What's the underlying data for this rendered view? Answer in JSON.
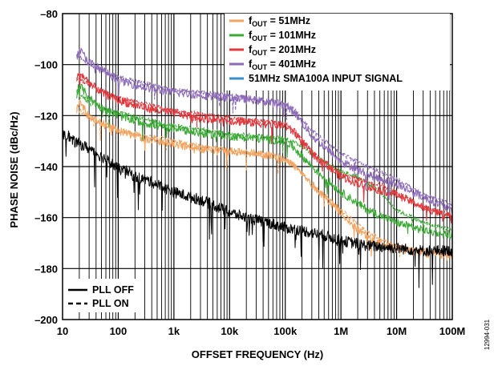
{
  "chart_data": {
    "type": "line",
    "xlabel": "OFFSET FREQUENCY (Hz)",
    "ylabel": "PHASE NOISE (dBc/Hz)",
    "x_scale": "log",
    "xlim": [
      10,
      100000000
    ],
    "ylim": [
      -200,
      -80
    ],
    "x_ticks": [
      {
        "value": 10,
        "label": "10"
      },
      {
        "value": 100,
        "label": "100"
      },
      {
        "value": 1000,
        "label": "1k"
      },
      {
        "value": 10000,
        "label": "10k"
      },
      {
        "value": 100000,
        "label": "100k"
      },
      {
        "value": 1000000,
        "label": "1M"
      },
      {
        "value": 10000000,
        "label": "10M"
      },
      {
        "value": 100000000,
        "label": "100M"
      }
    ],
    "y_ticks": [
      {
        "value": -80,
        "label": "–80"
      },
      {
        "value": -100,
        "label": "–100"
      },
      {
        "value": -120,
        "label": "–120"
      },
      {
        "value": -140,
        "label": "–140"
      },
      {
        "value": -160,
        "label": "–160"
      },
      {
        "value": -180,
        "label": "–180"
      },
      {
        "value": -200,
        "label": "–200"
      }
    ],
    "grid": "log-minor-vertical, major-horizontal",
    "figure_id": "12994-031",
    "legend_colors": {
      "position": "top-right",
      "entries": [
        {
          "prefix": "f",
          "sub": "OUT",
          "suffix": " = 51MHz",
          "color": "#F4A460"
        },
        {
          "prefix": "f",
          "sub": "OUT",
          "suffix": " = 101MHz",
          "color": "#3AAA35"
        },
        {
          "prefix": "f",
          "sub": "OUT",
          "suffix": " = 201MHz",
          "color": "#E0393E"
        },
        {
          "prefix": "f",
          "sub": "OUT",
          "suffix": " = 401MHz",
          "color": "#8E6BB8"
        },
        {
          "prefix": "",
          "sub": "",
          "suffix": "51MHz SMA100A INPUT SIGNAL",
          "color": "#3A8FC8"
        }
      ]
    },
    "legend_styles": {
      "position": "bottom-left",
      "entries": [
        {
          "label": "PLL OFF",
          "dash": "solid"
        },
        {
          "label": "PLL ON",
          "dash": "dashed"
        }
      ]
    },
    "series": [
      {
        "name": "fOUT = 51MHz, PLL OFF",
        "color": "#F4A460",
        "dash": "solid",
        "x": [
          18,
          20,
          30,
          50,
          100,
          200,
          500,
          1000,
          3000,
          10000,
          30000,
          60000,
          100000,
          150000,
          300000,
          1000000,
          2000000,
          5000000,
          10000000,
          30000000,
          100000000
        ],
        "y": [
          -118,
          -114,
          -120,
          -123,
          -126,
          -128,
          -130,
          -131,
          -133,
          -134,
          -135,
          -136,
          -137,
          -140,
          -147,
          -158,
          -165,
          -170,
          -172,
          -174,
          -175
        ]
      },
      {
        "name": "fOUT = 51MHz, PLL ON",
        "color": "#F4A460",
        "dash": "dashed",
        "x": [
          18,
          30,
          100,
          1000,
          10000,
          100000,
          150000,
          300000,
          1000000,
          3000000,
          10000000,
          30000000,
          100000000
        ],
        "y": [
          -117,
          -121,
          -126,
          -130,
          -134,
          -137,
          -140,
          -147,
          -157,
          -166,
          -171,
          -173,
          -174
        ]
      },
      {
        "name": "fOUT = 101MHz, PLL OFF",
        "color": "#3AAA35",
        "dash": "solid",
        "x": [
          18,
          20,
          30,
          50,
          100,
          200,
          500,
          1000,
          3000,
          10000,
          30000,
          100000,
          150000,
          300000,
          1000000,
          3000000,
          10000000,
          30000000,
          100000000
        ],
        "y": [
          -112,
          -108,
          -113,
          -117,
          -120,
          -122,
          -124,
          -125,
          -127,
          -128,
          -129,
          -130,
          -133,
          -140,
          -150,
          -157,
          -162,
          -165,
          -167
        ]
      },
      {
        "name": "fOUT = 101MHz, PLL ON",
        "color": "#3AAA35",
        "dash": "dashed",
        "x": [
          18,
          30,
          100,
          1000,
          10000,
          100000,
          200000,
          500000,
          1000000,
          2000000,
          5000000,
          10000000,
          30000000,
          100000000
        ],
        "y": [
          -110,
          -115,
          -119,
          -124,
          -127,
          -129,
          -132,
          -138,
          -142,
          -144,
          -150,
          -157,
          -162,
          -165
        ]
      },
      {
        "name": "fOUT = 201MHz, PLL OFF",
        "color": "#E0393E",
        "dash": "solid",
        "x": [
          18,
          20,
          30,
          50,
          100,
          200,
          500,
          1000,
          3000,
          10000,
          30000,
          100000,
          150000,
          300000,
          1000000,
          3000000,
          10000000,
          30000000,
          100000000
        ],
        "y": [
          -106,
          -103,
          -107,
          -111,
          -114,
          -116,
          -118,
          -119,
          -121,
          -122,
          -123,
          -124,
          -127,
          -135,
          -144,
          -148,
          -151,
          -156,
          -160
        ]
      },
      {
        "name": "fOUT = 201MHz, PLL ON",
        "color": "#E0393E",
        "dash": "dashed",
        "x": [
          18,
          30,
          100,
          1000,
          10000,
          100000,
          150000,
          300000,
          1000000,
          3000000,
          5000000,
          10000000,
          30000000,
          100000000
        ],
        "y": [
          -105,
          -108,
          -113,
          -118,
          -121,
          -123,
          -126,
          -134,
          -143,
          -146,
          -147,
          -150,
          -156,
          -159
        ]
      },
      {
        "name": "fOUT = 401MHz, PLL OFF",
        "color": "#8E6BB8",
        "dash": "solid",
        "x": [
          18,
          20,
          30,
          50,
          100,
          200,
          500,
          1000,
          3000,
          10000,
          30000,
          100000,
          150000,
          300000,
          1000000,
          3000000,
          10000000,
          30000000,
          100000000
        ],
        "y": [
          -97,
          -94,
          -99,
          -102,
          -106,
          -108,
          -110,
          -111,
          -112,
          -113,
          -114,
          -116,
          -119,
          -128,
          -138,
          -143,
          -147,
          -152,
          -157
        ]
      },
      {
        "name": "fOUT = 401MHz, PLL ON",
        "color": "#8E6BB8",
        "dash": "dashed",
        "x": [
          18,
          30,
          100,
          1000,
          10000,
          100000,
          150000,
          300000,
          1000000,
          3000000,
          10000000,
          30000000,
          100000000
        ],
        "y": [
          -96,
          -100,
          -105,
          -110,
          -112,
          -115,
          -118,
          -126,
          -135,
          -140,
          -145,
          -151,
          -155
        ]
      },
      {
        "name": "PLL OFF reference",
        "color": "#000000",
        "dash": "solid",
        "x": [
          10,
          12,
          15,
          20,
          30,
          50,
          70,
          100,
          150,
          200,
          300,
          500,
          1000,
          2000,
          3000,
          5000,
          10000,
          20000,
          30000,
          50000,
          100000,
          200000,
          300000,
          500000,
          1000000,
          3000000,
          10000000,
          30000000,
          100000000
        ],
        "y": [
          -128,
          -127,
          -130,
          -131,
          -133,
          -136,
          -138,
          -141,
          -142,
          -144,
          -145,
          -147,
          -150,
          -152,
          -153,
          -155,
          -158,
          -160,
          -161,
          -162,
          -164,
          -165,
          -166,
          -167,
          -169,
          -171,
          -172,
          -173,
          -173
        ]
      }
    ]
  }
}
